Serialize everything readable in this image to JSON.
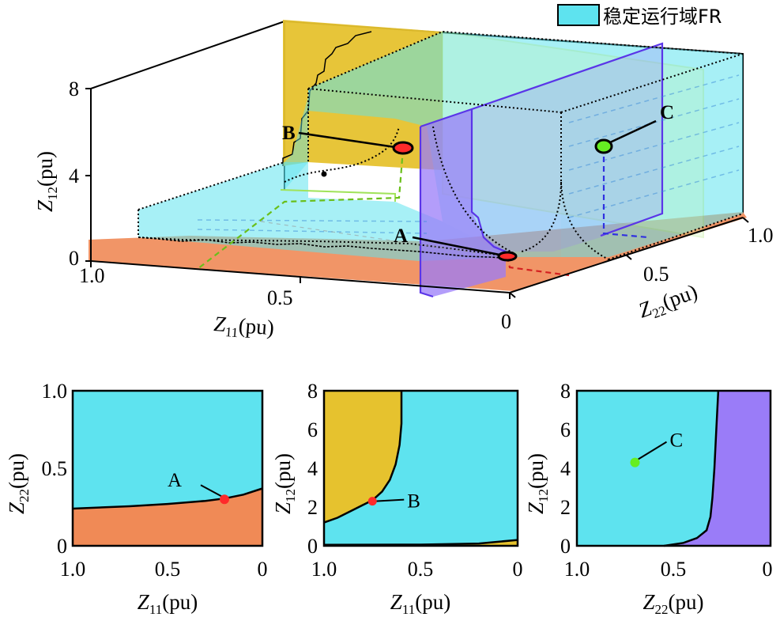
{
  "legend": {
    "label": "稳定运行域FR",
    "color": "#5ee3ef"
  },
  "colors": {
    "stable": "#5ee3ef",
    "z11_region": "#f08a56",
    "z12_region": "#e6c22e",
    "z22_region": "#9a7cf8",
    "marker_a": "#ff2a2a",
    "marker_b": "#ff2a2a",
    "marker_c": "#66ee22"
  },
  "chart_data": [
    {
      "type": "area",
      "panel": "3d",
      "axes": {
        "x": {
          "label_main": "Z",
          "label_sub": "11",
          "label_unit": "(pu)",
          "ticks": [
            "1.0",
            "0.5",
            "0"
          ],
          "range": [
            1.0,
            0
          ]
        },
        "y": {
          "label_main": "Z",
          "label_sub": "22",
          "label_unit": "(pu)",
          "ticks": [
            "0",
            "0.5",
            "1.0"
          ],
          "range": [
            0,
            1.0
          ]
        },
        "z": {
          "label_main": "Z",
          "label_sub": "12",
          "label_unit": "(pu)",
          "ticks": [
            "0",
            "4",
            "8"
          ],
          "range": [
            0,
            8
          ]
        }
      },
      "points": [
        {
          "label": "A",
          "z11": 0.2,
          "z22": 0.3,
          "z12": 0
        },
        {
          "label": "B",
          "z11": 0.75,
          "z22": 1.0,
          "z12": 2.3
        },
        {
          "label": "C",
          "z11": 0,
          "z22": 0.7,
          "z12": 4.3
        }
      ]
    },
    {
      "type": "area",
      "panel": "left",
      "xlabel_main": "Z",
      "xlabel_sub": "11",
      "xlabel_unit": "(pu)",
      "ylabel_main": "Z",
      "ylabel_sub": "22",
      "ylabel_unit": "(pu)",
      "xlim": [
        1.0,
        0
      ],
      "ylim": [
        0,
        1.0
      ],
      "xticks": [
        "1.0",
        "0.5",
        "0"
      ],
      "yticks": [
        "0",
        "0.5",
        "1.0"
      ],
      "boundary": {
        "x": [
          1.0,
          0.9,
          0.7,
          0.5,
          0.3,
          0.2,
          0.1,
          0.0
        ],
        "y": [
          0.24,
          0.245,
          0.255,
          0.27,
          0.29,
          0.305,
          0.33,
          0.37
        ]
      },
      "point": {
        "label": "A",
        "x": 0.2,
        "y": 0.3
      }
    },
    {
      "type": "area",
      "panel": "middle",
      "xlabel_main": "Z",
      "xlabel_sub": "11",
      "xlabel_unit": "(pu)",
      "ylabel_main": "Z",
      "ylabel_sub": "12",
      "ylabel_unit": "(pu)",
      "xlim": [
        1.0,
        0
      ],
      "ylim": [
        0,
        8
      ],
      "xticks": [
        "1.0",
        "0.5",
        "0"
      ],
      "yticks": [
        "0",
        "2",
        "4",
        "6",
        "8"
      ],
      "boundary": {
        "x": [
          1.0,
          0.93,
          0.86,
          0.8,
          0.75,
          0.7,
          0.66,
          0.63,
          0.61,
          0.6,
          0.6
        ],
        "y": [
          1.2,
          1.45,
          1.8,
          2.1,
          2.35,
          2.8,
          3.4,
          4.2,
          5.2,
          6.3,
          8.0
        ]
      },
      "bottom_boundary": {
        "x": [
          1.0,
          0.5,
          0.2,
          0.0
        ],
        "y": [
          0.05,
          0.06,
          0.12,
          0.3
        ]
      },
      "point": {
        "label": "B",
        "x": 0.75,
        "y": 2.3
      }
    },
    {
      "type": "area",
      "panel": "right",
      "xlabel_main": "Z",
      "xlabel_sub": "22",
      "xlabel_unit": "(pu)",
      "ylabel_main": "Z",
      "ylabel_sub": "12",
      "ylabel_unit": "(pu)",
      "xlim": [
        1.0,
        0
      ],
      "ylim": [
        0,
        8
      ],
      "xticks": [
        "1.0",
        "0.5",
        "0"
      ],
      "yticks": [
        "0",
        "2",
        "4",
        "6",
        "8"
      ],
      "boundary": {
        "x": [
          0.55,
          0.45,
          0.38,
          0.33,
          0.31,
          0.3,
          0.29,
          0.28,
          0.27
        ],
        "y": [
          0.0,
          0.15,
          0.4,
          0.8,
          1.5,
          2.5,
          4.0,
          6.0,
          8.0
        ]
      },
      "point": {
        "label": "C",
        "x": 0.7,
        "y": 4.3
      }
    }
  ]
}
